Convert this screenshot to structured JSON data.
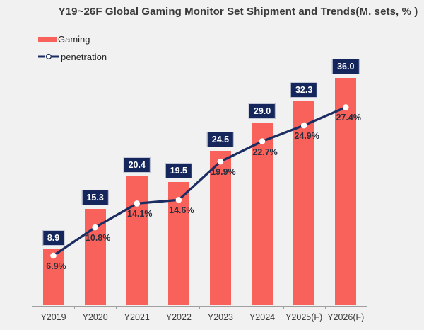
{
  "colors": {
    "background": "#f1f1f1",
    "bar": "#f9625a",
    "navy_badge": "#14265b",
    "line": "#1b2d63",
    "marker_fill": "#ffffff",
    "axis": "#9f9f9f",
    "pct_text": "#2b2f3d",
    "category_text": "#3c3c3c",
    "title_text": "#3a3a3a"
  },
  "chart_data": {
    "type": "bar",
    "title": "Y19~26F Global Gaming Monitor Set Shipment and Trends(M. sets, % )",
    "categories": [
      "Y2019",
      "Y2020",
      "Y2021",
      "Y2022",
      "Y2023",
      "Y2024",
      "Y2025(F)",
      "Y2026(F)"
    ],
    "series": [
      {
        "name": "Gaming",
        "chart_type": "bar",
        "values": [
          8.9,
          15.3,
          20.4,
          19.5,
          24.5,
          29.0,
          32.3,
          36.0
        ],
        "data_labels": [
          "8.9",
          "15.3",
          "20.4",
          "19.5",
          "24.5",
          "29.0",
          "32.3",
          "36.0"
        ],
        "color": "#f9625a",
        "label_style": "navy-box-white-text"
      },
      {
        "name": "penetration",
        "chart_type": "line",
        "unit": "%",
        "values": [
          6.9,
          10.8,
          14.1,
          14.6,
          19.9,
          22.7,
          24.9,
          27.4
        ],
        "data_labels": [
          "6.9%",
          "10.8%",
          "14.1%",
          "14.6%",
          "19.9%",
          "22.7%",
          "24.9%",
          "27.4%"
        ],
        "color": "#1b2d63",
        "marker": "white-circle",
        "line_style": "solid-thick"
      }
    ],
    "xlabel": "",
    "ylabel": "",
    "bar_axis_range_hint": [
      0,
      40
    ],
    "line_axis_range_hint": [
      0,
      30
    ],
    "grid": false,
    "legend_position": "top-left",
    "x_axis": {
      "tick_marks": true,
      "line_visible": true
    }
  }
}
